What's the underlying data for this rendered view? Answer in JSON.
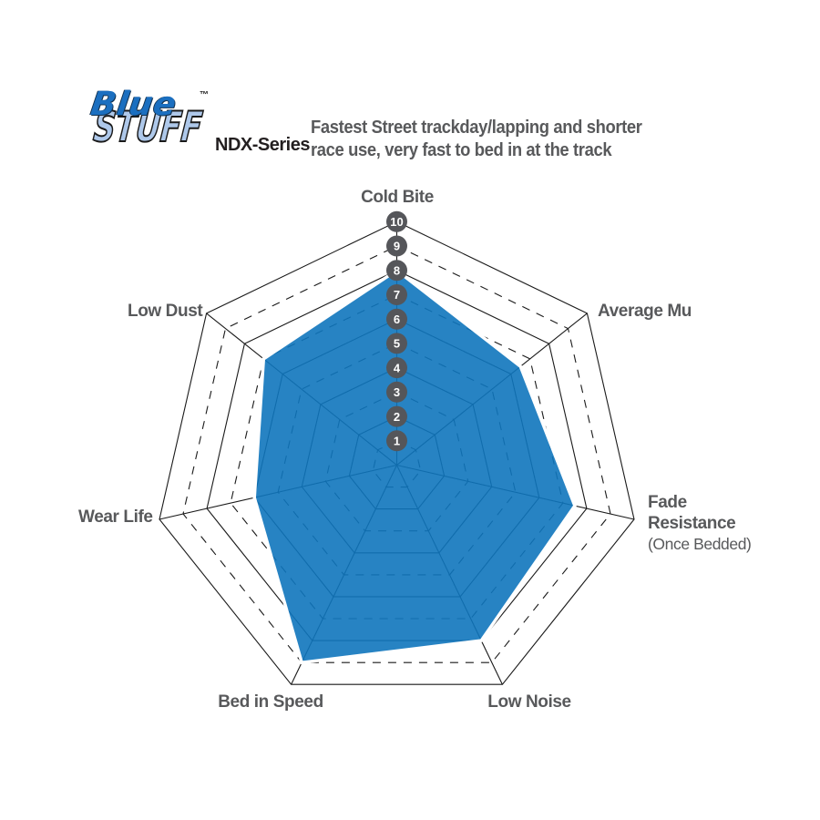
{
  "logo": {
    "line1": "Blue",
    "line2": "STUFF",
    "tm": "™",
    "series": "NDX-Series",
    "colors": {
      "blue_word": "#1B6FC0",
      "stuff_fill": "#AEC8EA",
      "outline": "#1a1a1a",
      "series_text": "#231F20"
    }
  },
  "tagline": {
    "line1": "Fastest Street trackday/lapping and shorter",
    "line2": "race use, very fast to bed in at the track",
    "color": "#58595B"
  },
  "chart_data": {
    "type": "radar",
    "title": "EBC Bluestuff NDX-Series brake pad performance ratings",
    "scale": {
      "min": 0,
      "max": 10,
      "ticks": [
        1,
        2,
        3,
        4,
        5,
        6,
        7,
        8,
        9,
        10
      ]
    },
    "axes": [
      {
        "label": "Cold Bite",
        "value": 8
      },
      {
        "label": "Average Mu",
        "value": 6.5
      },
      {
        "label": "Fade Resistance",
        "sublabel": "(Once Bedded)",
        "value": 7.5
      },
      {
        "label": "Low Noise",
        "value": 8
      },
      {
        "label": "Bed in Speed",
        "value": 9
      },
      {
        "label": "Wear Life",
        "value": 6
      },
      {
        "label": "Low Dust",
        "value": 7
      }
    ],
    "grid": {
      "levels": 10,
      "odd_levels_dashed": true,
      "color": "#1a1a1a",
      "shape": "heptagon"
    },
    "legend": "none",
    "series_color": "#0F76BC",
    "badge_color": "#55565A",
    "label_color": "#58595B"
  }
}
